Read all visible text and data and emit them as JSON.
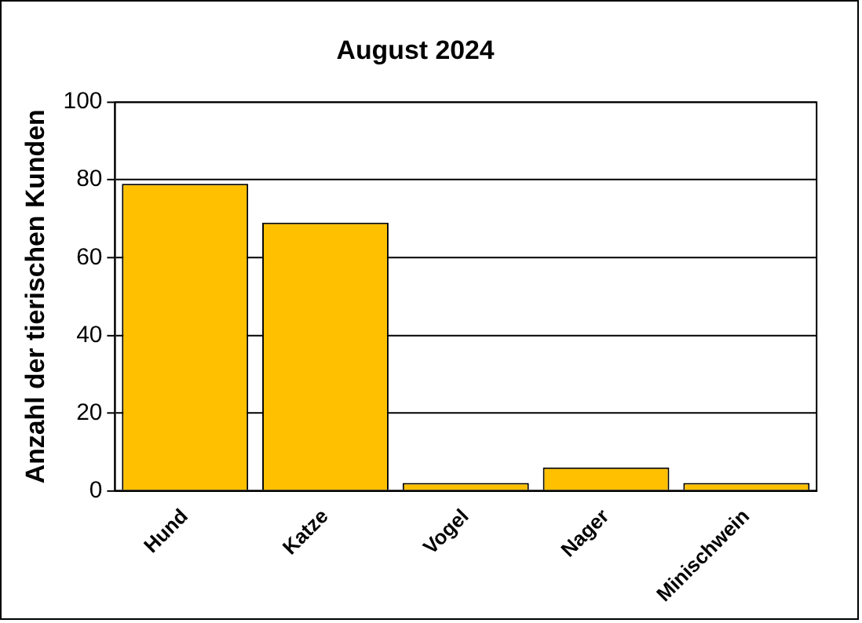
{
  "chart_data": {
    "type": "bar",
    "title": "August 2024",
    "ylabel": "Anzahl der tierischen Kunden",
    "categories": [
      "Hund",
      "Katze",
      "Vogel",
      "Nager",
      "Minischwein"
    ],
    "values": [
      79,
      69,
      2,
      6,
      2
    ],
    "color": "#ffc000",
    "ylim": [
      0,
      100
    ],
    "yticks": [
      0,
      20,
      40,
      60,
      80,
      100
    ],
    "grid": "y",
    "legend": false
  }
}
